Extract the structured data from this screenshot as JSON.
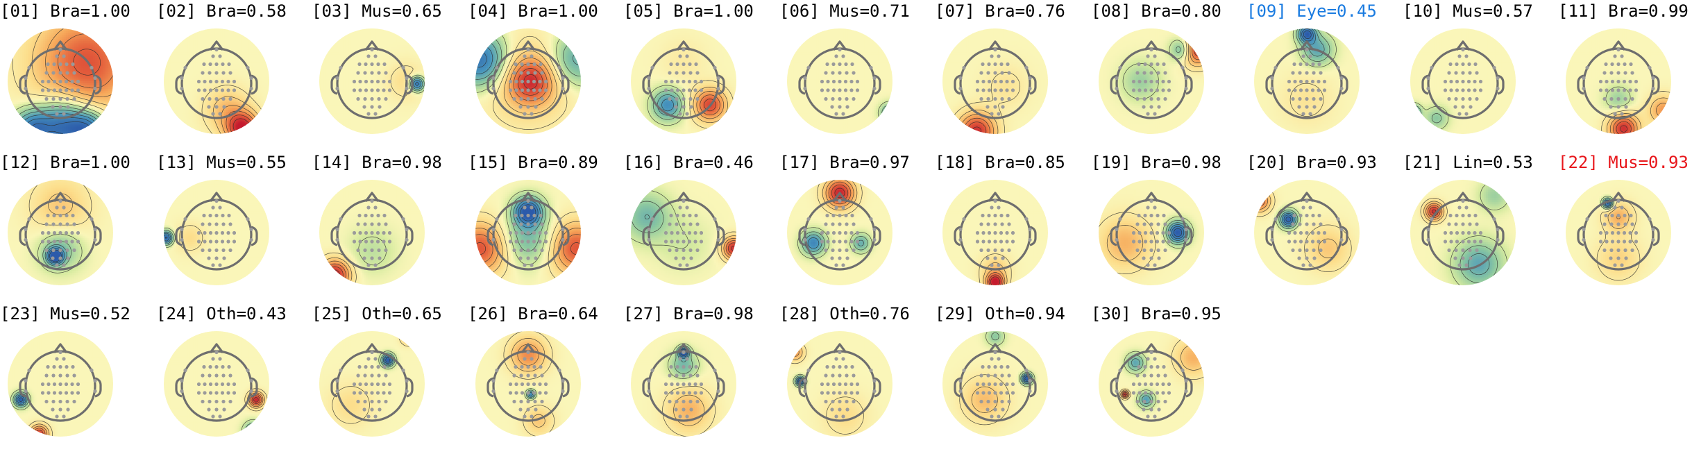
{
  "figure": {
    "components": [
      {
        "index": "01",
        "label": "Bra",
        "prob": "1.00",
        "color": "#000000",
        "blobs": [
          [
            0.5,
            -0.35,
            0.75,
            0.7
          ],
          [
            0.05,
            0.85,
            -0.9,
            0.35
          ],
          [
            -0.55,
            0.9,
            -0.7,
            0.25
          ],
          [
            0.55,
            0.9,
            -0.7,
            0.25
          ]
        ]
      },
      {
        "index": "02",
        "label": "Bra",
        "prob": "0.58",
        "color": "#000000",
        "blobs": [
          [
            0.5,
            0.9,
            0.95,
            0.22
          ],
          [
            0.2,
            0.55,
            0.35,
            0.3
          ]
        ]
      },
      {
        "index": "03",
        "label": "Mus",
        "prob": "0.65",
        "color": "#000000",
        "blobs": [
          [
            0.85,
            0.05,
            -0.9,
            0.1
          ],
          [
            0.65,
            0.0,
            0.2,
            0.25
          ]
        ]
      },
      {
        "index": "04",
        "label": "Bra",
        "prob": "1.00",
        "color": "#000000",
        "blobs": [
          [
            0.05,
            0.0,
            0.65,
            0.3
          ],
          [
            -0.9,
            -0.4,
            -0.85,
            0.35
          ],
          [
            0.9,
            -0.4,
            -0.5,
            0.35
          ],
          [
            0.0,
            0.0,
            0.3,
            0.6
          ]
        ]
      },
      {
        "index": "05",
        "label": "Bra",
        "prob": "1.00",
        "color": "#000000",
        "blobs": [
          [
            0.5,
            0.45,
            0.8,
            0.22
          ],
          [
            -0.3,
            0.45,
            -0.65,
            0.2
          ],
          [
            0.0,
            -0.4,
            0.1,
            0.3
          ]
        ]
      },
      {
        "index": "06",
        "label": "Mus",
        "prob": "0.71",
        "color": "#000000",
        "blobs": [
          [
            0.95,
            0.6,
            -0.55,
            0.12
          ]
        ]
      },
      {
        "index": "07",
        "label": "Bra",
        "prob": "0.76",
        "color": "#000000",
        "blobs": [
          [
            -0.35,
            0.95,
            0.9,
            0.25
          ],
          [
            0.2,
            0.1,
            0.15,
            0.3
          ]
        ]
      },
      {
        "index": "08",
        "label": "Bra",
        "prob": "0.80",
        "color": "#000000",
        "blobs": [
          [
            0.85,
            -0.6,
            0.95,
            0.2
          ],
          [
            0.6,
            -0.6,
            -0.6,
            0.15
          ],
          [
            -0.2,
            0.0,
            -0.25,
            0.25
          ]
        ]
      },
      {
        "index": "09",
        "label": "Eye",
        "prob": "0.45",
        "color": "#1a7be0",
        "blobs": [
          [
            0.0,
            -0.9,
            -0.9,
            0.12
          ],
          [
            0.2,
            -0.6,
            -0.5,
            0.2
          ],
          [
            0.0,
            0.35,
            0.15,
            0.35
          ]
        ]
      },
      {
        "index": "10",
        "label": "Mus",
        "prob": "0.57",
        "color": "#000000",
        "blobs": [
          [
            -0.95,
            0.6,
            -0.75,
            0.1
          ],
          [
            -0.5,
            0.7,
            -0.3,
            0.15
          ]
        ]
      },
      {
        "index": "11",
        "label": "Bra",
        "prob": "0.99",
        "color": "#000000",
        "blobs": [
          [
            0.1,
            0.9,
            0.9,
            0.2
          ],
          [
            0.0,
            0.35,
            -0.25,
            0.18
          ],
          [
            0.85,
            0.55,
            0.5,
            0.2
          ]
        ]
      },
      {
        "index": "12",
        "label": "Bra",
        "prob": "1.00",
        "color": "#000000",
        "blobs": [
          [
            -0.1,
            0.45,
            -1.0,
            0.11
          ],
          [
            0.0,
            0.3,
            -0.35,
            0.28
          ],
          [
            0.0,
            -0.5,
            0.3,
            0.4
          ]
        ]
      },
      {
        "index": "13",
        "label": "Mus",
        "prob": "0.55",
        "color": "#000000",
        "blobs": [
          [
            -0.95,
            0.1,
            -0.9,
            0.09
          ],
          [
            -0.5,
            0.1,
            0.2,
            0.2
          ]
        ]
      },
      {
        "index": "14",
        "label": "Bra",
        "prob": "0.98",
        "color": "#000000",
        "blobs": [
          [
            -0.7,
            0.8,
            0.95,
            0.2
          ],
          [
            0.0,
            0.35,
            -0.15,
            0.3
          ]
        ]
      },
      {
        "index": "15",
        "label": "Bra",
        "prob": "0.89",
        "color": "#000000",
        "blobs": [
          [
            0.0,
            -0.4,
            -1.0,
            0.18
          ],
          [
            0.0,
            0.1,
            -0.4,
            0.35
          ],
          [
            -0.9,
            0.3,
            0.75,
            0.35
          ],
          [
            0.9,
            0.3,
            0.75,
            0.35
          ]
        ]
      },
      {
        "index": "16",
        "label": "Bra",
        "prob": "0.46",
        "color": "#000000",
        "blobs": [
          [
            0.95,
            0.3,
            0.9,
            0.15
          ],
          [
            -0.7,
            -0.3,
            -0.4,
            0.3
          ],
          [
            0.0,
            0.2,
            -0.1,
            0.35
          ]
        ]
      },
      {
        "index": "17",
        "label": "Bra",
        "prob": "0.97",
        "color": "#000000",
        "blobs": [
          [
            0.0,
            -0.75,
            0.95,
            0.2
          ],
          [
            -0.5,
            0.2,
            -0.7,
            0.15
          ],
          [
            0.4,
            0.2,
            -0.45,
            0.12
          ]
        ]
      },
      {
        "index": "18",
        "label": "Bra",
        "prob": "0.85",
        "color": "#000000",
        "blobs": [
          [
            0.0,
            0.95,
            0.95,
            0.12
          ],
          [
            0.0,
            0.7,
            0.3,
            0.2
          ]
        ]
      },
      {
        "index": "19",
        "label": "Bra",
        "prob": "0.98",
        "color": "#000000",
        "blobs": [
          [
            0.5,
            0.0,
            -1.0,
            0.14
          ],
          [
            -0.5,
            0.2,
            0.4,
            0.35
          ]
        ]
      },
      {
        "index": "20",
        "label": "Bra",
        "prob": "0.93",
        "color": "#000000",
        "blobs": [
          [
            -0.35,
            -0.25,
            -0.95,
            0.11
          ],
          [
            -0.9,
            -0.6,
            0.7,
            0.15
          ],
          [
            0.4,
            0.3,
            0.3,
            0.3
          ]
        ]
      },
      {
        "index": "21",
        "label": "Lin",
        "prob": "0.53",
        "color": "#000000",
        "blobs": [
          [
            -0.55,
            -0.4,
            0.9,
            0.12
          ],
          [
            0.3,
            0.6,
            -0.5,
            0.3
          ],
          [
            0.6,
            -0.7,
            -0.25,
            0.2
          ]
        ]
      },
      {
        "index": "22",
        "label": "Mus",
        "prob": "0.93",
        "color": "#e8161b",
        "blobs": [
          [
            -0.2,
            -0.55,
            -1.0,
            0.07
          ],
          [
            0.0,
            -0.3,
            0.4,
            0.2
          ],
          [
            0.0,
            0.5,
            0.25,
            0.3
          ]
        ]
      },
      {
        "index": "23",
        "label": "Mus",
        "prob": "0.52",
        "color": "#000000",
        "blobs": [
          [
            -0.75,
            0.3,
            -0.95,
            0.09
          ],
          [
            -0.4,
            0.95,
            0.85,
            0.12
          ]
        ]
      },
      {
        "index": "24",
        "label": "Oth",
        "prob": "0.43",
        "color": "#000000",
        "blobs": [
          [
            0.75,
            0.3,
            0.95,
            0.1
          ],
          [
            0.7,
            0.9,
            -0.6,
            0.12
          ]
        ]
      },
      {
        "index": "25",
        "label": "Oth",
        "prob": "0.65",
        "color": "#000000",
        "blobs": [
          [
            0.3,
            -0.45,
            -1.0,
            0.08
          ],
          [
            0.7,
            -0.9,
            0.6,
            0.1
          ],
          [
            -0.4,
            0.4,
            0.2,
            0.3
          ]
        ]
      },
      {
        "index": "26",
        "label": "Bra",
        "prob": "0.64",
        "color": "#000000",
        "blobs": [
          [
            0.05,
            0.2,
            -0.7,
            0.06
          ],
          [
            0.0,
            -0.55,
            0.55,
            0.25
          ],
          [
            0.2,
            0.7,
            0.3,
            0.2
          ]
        ]
      },
      {
        "index": "27",
        "label": "Bra",
        "prob": "0.98",
        "color": "#000000",
        "blobs": [
          [
            0.0,
            -0.6,
            -1.0,
            0.07
          ],
          [
            0.0,
            -0.35,
            -0.4,
            0.18
          ],
          [
            0.1,
            0.5,
            0.4,
            0.3
          ]
        ]
      },
      {
        "index": "28",
        "label": "Oth",
        "prob": "0.76",
        "color": "#000000",
        "blobs": [
          [
            -0.75,
            -0.05,
            -1.0,
            0.06
          ],
          [
            -0.85,
            -0.6,
            0.5,
            0.12
          ],
          [
            0.1,
            0.6,
            0.2,
            0.3
          ]
        ]
      },
      {
        "index": "29",
        "label": "Oth",
        "prob": "0.94",
        "color": "#000000",
        "blobs": [
          [
            0.6,
            -0.1,
            -1.0,
            0.07
          ],
          [
            0.0,
            -0.9,
            -0.3,
            0.12
          ],
          [
            -0.2,
            0.3,
            0.35,
            0.3
          ]
        ]
      },
      {
        "index": "30",
        "label": "Bra",
        "prob": "0.95",
        "color": "#000000",
        "blobs": [
          [
            -0.5,
            0.2,
            0.95,
            0.05
          ],
          [
            -0.3,
            -0.4,
            -0.5,
            0.12
          ],
          [
            -0.1,
            0.3,
            -0.55,
            0.1
          ],
          [
            0.8,
            -0.5,
            0.4,
            0.25
          ]
        ]
      }
    ]
  }
}
